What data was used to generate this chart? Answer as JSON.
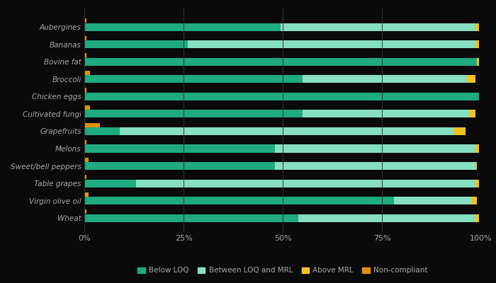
{
  "categories": [
    "Aubergines",
    "Bananas",
    "Bovine fat",
    "Broccoli",
    "Chicken eggs",
    "Cultivated fungi",
    "Grapefruits",
    "Melons",
    "Sweet/bell peppers",
    "Table grapes",
    "Virgin olive oil",
    "Wheat"
  ],
  "below_loq": [
    49.5,
    26.0,
    99.0,
    55.0,
    99.5,
    55.0,
    9.0,
    48.0,
    48.0,
    13.0,
    78.0,
    54.0
  ],
  "between_loq_mrl": [
    49.0,
    72.5,
    0.0,
    41.5,
    0.0,
    42.0,
    84.0,
    50.5,
    50.5,
    85.5,
    19.5,
    44.5
  ],
  "above_mrl": [
    1.0,
    1.0,
    0.5,
    2.0,
    0.0,
    1.5,
    3.0,
    1.0,
    0.5,
    1.0,
    1.5,
    1.0
  ],
  "non_compliant": [
    0.5,
    0.5,
    0.5,
    1.5,
    0.5,
    1.5,
    4.0,
    0.5,
    1.0,
    0.5,
    1.0,
    0.5
  ],
  "color_below_loq": "#1faa80",
  "color_between": "#86dfc0",
  "color_above_mrl": "#f0c320",
  "color_non_compliant": "#e09010",
  "background_color": "#0a0a0a",
  "bar_height": 0.45,
  "nc_bar_height": 0.25,
  "xlabel_ticks": [
    "0%",
    "25%",
    "50%",
    "75%",
    "100%"
  ],
  "xlabel_vals": [
    0,
    25,
    50,
    75,
    100
  ],
  "legend_labels": [
    "Below LOQ",
    "Between LOQ and MRL",
    "Above MRL",
    "Non-compliant"
  ],
  "label_color": "#aaaaaa",
  "tick_color": "#aaaaaa",
  "grid_color": "#333333"
}
